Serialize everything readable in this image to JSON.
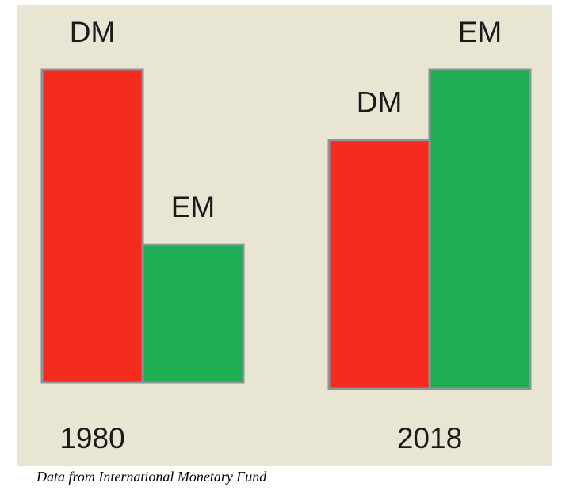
{
  "chart_data": {
    "type": "bar",
    "categories": [
      "1980",
      "2018"
    ],
    "series": [
      {
        "name": "DM",
        "values": [
          100,
          78
        ],
        "color": "#f52b1f"
      },
      {
        "name": "EM",
        "values": [
          44,
          100
        ],
        "color": "#1fae54"
      }
    ],
    "ylim": [
      0,
      100
    ],
    "grid": false,
    "legend": "none"
  },
  "caption": "Data from International Monetary Fund"
}
